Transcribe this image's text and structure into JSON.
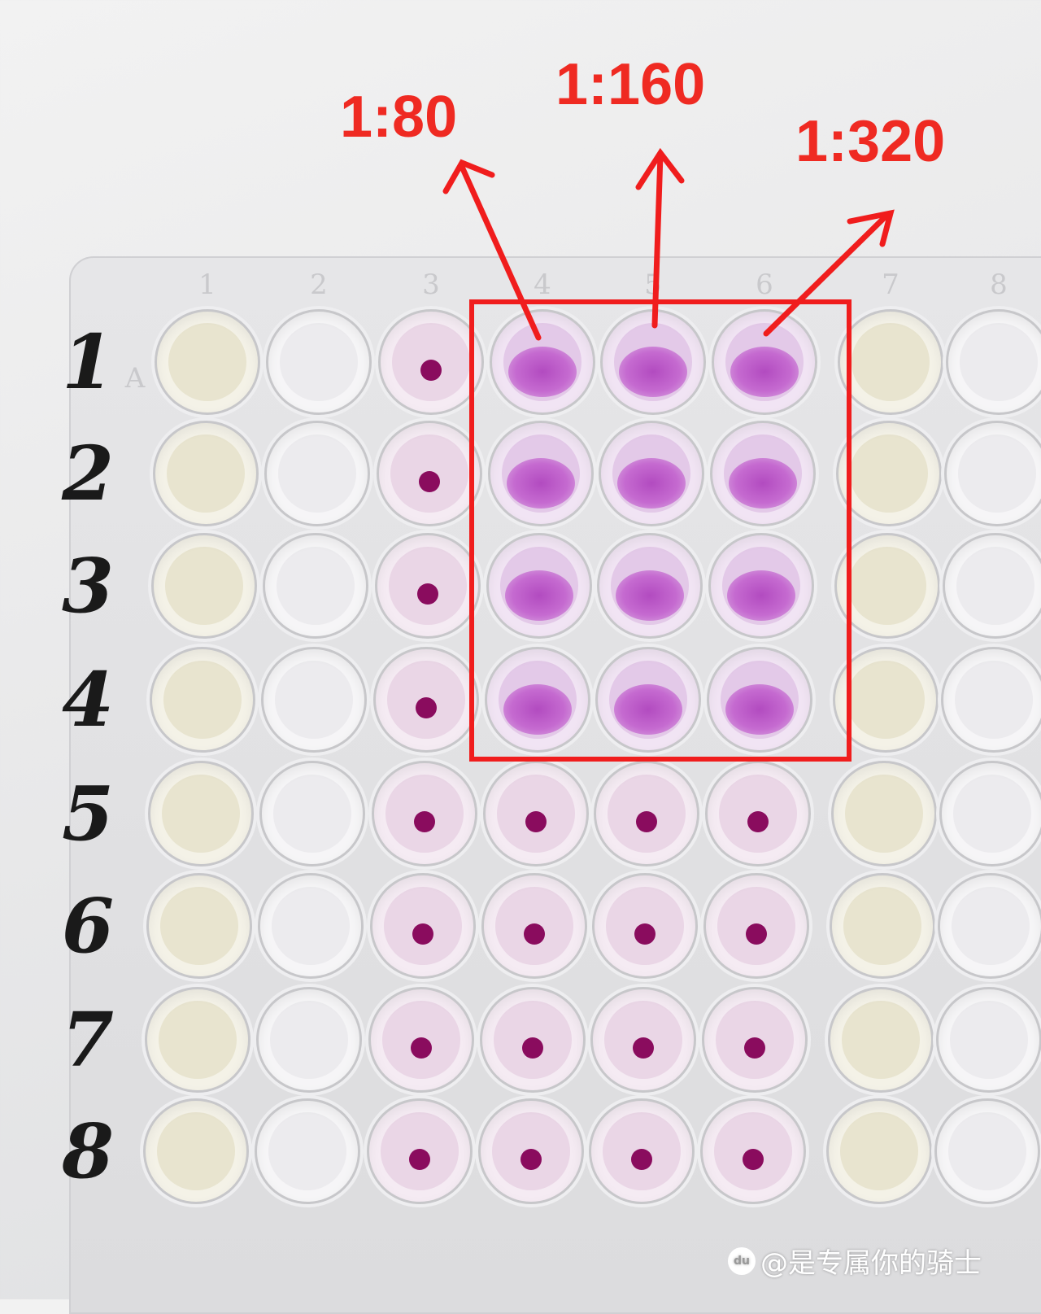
{
  "annotations": {
    "dilution_1": "1:80",
    "dilution_2": "1:160",
    "dilution_3": "1:320",
    "color": "#ef2a22"
  },
  "plate": {
    "column_numbers": [
      "1",
      "2",
      "3",
      "4",
      "5",
      "6",
      "7",
      "8"
    ],
    "row_letter": "A",
    "handwritten_rows": [
      "1",
      "2",
      "3",
      "4",
      "5",
      "6",
      "7",
      "8"
    ],
    "well_pattern": [
      [
        "yellow",
        "clear",
        "dot",
        "diffuse",
        "diffuse",
        "diffuse",
        "yellow",
        "clear"
      ],
      [
        "yellow",
        "clear",
        "dot",
        "diffuse",
        "diffuse",
        "diffuse",
        "yellow",
        "clear"
      ],
      [
        "yellow",
        "clear",
        "dot",
        "diffuse",
        "diffuse",
        "diffuse",
        "yellow",
        "clear"
      ],
      [
        "yellow",
        "clear",
        "dot",
        "diffuse",
        "diffuse",
        "diffuse",
        "yellow",
        "clear"
      ],
      [
        "yellow",
        "clear",
        "dot",
        "dot",
        "dot",
        "dot",
        "yellow",
        "clear"
      ],
      [
        "yellow",
        "clear",
        "dot",
        "dot",
        "dot",
        "dot",
        "yellow",
        "clear"
      ],
      [
        "yellow",
        "clear",
        "dot",
        "dot",
        "dot",
        "dot",
        "yellow",
        "clear"
      ],
      [
        "yellow",
        "clear",
        "dot",
        "dot",
        "dot",
        "dot",
        "yellow",
        "clear"
      ]
    ]
  },
  "watermark": {
    "logo": "baidu-paw-icon",
    "logo_text": "du",
    "text": "@是专属你的骑士"
  }
}
